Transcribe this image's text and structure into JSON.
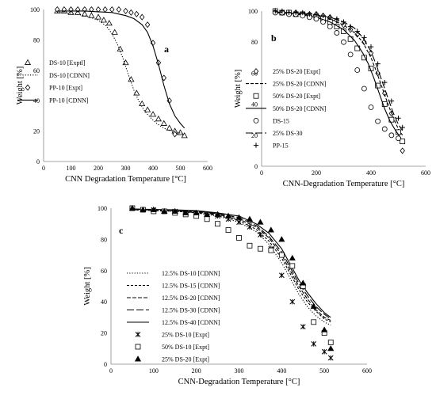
{
  "chart_data": [
    {
      "id": "a",
      "type": "line",
      "panel_label": "a",
      "xlabel": "CNN Degradation Temperature [°C]",
      "ylabel": "Weight [%]",
      "xlim": [
        0,
        600
      ],
      "ylim": [
        0,
        100
      ],
      "xticks": [
        0,
        100,
        200,
        300,
        400,
        500,
        600
      ],
      "yticks": [
        0,
        20,
        40,
        60,
        80,
        100
      ],
      "legend_position": "left",
      "series": [
        {
          "name": "DS-10 [Exptl]",
          "kind": "marker",
          "marker": "triangle",
          "x": [
            50,
            75,
            100,
            125,
            150,
            175,
            200,
            220,
            240,
            260,
            280,
            300,
            320,
            340,
            360,
            380,
            400,
            420,
            440,
            460,
            480,
            500,
            515
          ],
          "y": [
            99,
            99,
            98,
            98,
            97,
            96,
            95,
            93,
            91,
            85,
            74,
            65,
            54,
            45,
            38,
            34,
            31,
            28,
            25,
            22,
            20,
            19,
            17
          ]
        },
        {
          "name": "DS-10 [CDNN]",
          "kind": "line",
          "dash": "1.2,2",
          "x": [
            50,
            100,
            150,
            200,
            230,
            250,
            270,
            290,
            310,
            330,
            350,
            370,
            390,
            410,
            430,
            450,
            470,
            490,
            510
          ],
          "y": [
            98,
            97.5,
            96,
            93,
            89,
            84,
            77,
            68,
            57,
            47,
            39,
            33,
            29,
            25.5,
            23,
            21,
            20,
            19,
            18.5
          ]
        },
        {
          "name": "PP-10 [Expt]",
          "kind": "marker",
          "marker": "diamond",
          "x": [
            50,
            75,
            100,
            125,
            150,
            175,
            200,
            225,
            250,
            275,
            300,
            320,
            340,
            360,
            380,
            400,
            420,
            440,
            460,
            480
          ],
          "y": [
            100,
            100,
            100,
            100,
            100,
            100,
            100,
            100,
            100,
            100,
            99,
            98,
            97,
            95,
            90,
            78,
            65,
            55,
            40,
            18
          ]
        },
        {
          "name": "PP-10 [CDNN]",
          "kind": "line",
          "dash": "",
          "x": [
            50,
            100,
            150,
            200,
            250,
            300,
            330,
            360,
            380,
            400,
            420,
            440,
            460,
            480,
            500,
            515
          ],
          "y": [
            99,
            99,
            99,
            98.5,
            98,
            96,
            94,
            90,
            85,
            76,
            64,
            50,
            38,
            30,
            25,
            22
          ]
        }
      ]
    },
    {
      "id": "b",
      "type": "line",
      "panel_label": "b",
      "xlabel": "CNN-Degradation Temperature [°C]",
      "ylabel": "Weight [%]",
      "xlim": [
        0,
        600
      ],
      "ylim": [
        0,
        100
      ],
      "xticks": [
        0,
        200,
        400,
        600
      ],
      "yticks": [
        0,
        20,
        40,
        60,
        80,
        100
      ],
      "legend_position": "right",
      "series": [
        {
          "name": "25% DS-20 [Expt]",
          "kind": "marker",
          "marker": "diamond",
          "x": [
            50,
            75,
            100,
            125,
            150,
            175,
            200,
            225,
            250,
            275,
            300,
            325,
            350,
            375,
            400,
            425,
            450,
            475,
            500,
            515
          ],
          "y": [
            100,
            99,
            99,
            99,
            98,
            98,
            98,
            97,
            96,
            94,
            91,
            88,
            85,
            80,
            73,
            60,
            47,
            34,
            22,
            10
          ]
        },
        {
          "name": "25% DS-20 [CDNN]",
          "kind": "line",
          "dash": "4,2",
          "x": [
            50,
            100,
            150,
            200,
            250,
            300,
            340,
            370,
            400,
            420,
            440,
            460,
            480,
            500,
            515
          ],
          "y": [
            99,
            98.5,
            98,
            97,
            95,
            91,
            86,
            80,
            70,
            61,
            51,
            41,
            32,
            24,
            20
          ]
        },
        {
          "name": "50% DS-20 [Expt]",
          "kind": "marker",
          "marker": "square",
          "x": [
            50,
            75,
            100,
            125,
            150,
            175,
            200,
            225,
            250,
            275,
            300,
            325,
            350,
            375,
            400,
            425,
            450,
            475,
            500,
            515
          ],
          "y": [
            100,
            99,
            99,
            98,
            98,
            97,
            96,
            95,
            93,
            90,
            87,
            82,
            76,
            70,
            63,
            52,
            40,
            30,
            22,
            16
          ]
        },
        {
          "name": "50% DS-20 [CDNN]",
          "kind": "line",
          "dash": "",
          "x": [
            50,
            100,
            150,
            200,
            250,
            300,
            340,
            370,
            390,
            410,
            430,
            450,
            470,
            490,
            510
          ],
          "y": [
            99,
            98.5,
            97.5,
            96,
            93,
            88,
            81,
            73,
            66,
            57,
            47,
            37,
            29,
            23,
            18
          ]
        },
        {
          "name": "DS-15",
          "kind": "marker",
          "marker": "circle",
          "x": [
            50,
            75,
            100,
            125,
            150,
            175,
            200,
            225,
            250,
            275,
            300,
            325,
            350,
            375,
            400,
            425,
            450,
            475,
            500
          ],
          "y": [
            99,
            99,
            98,
            98,
            97,
            96,
            95,
            93,
            90,
            86,
            80,
            72,
            62,
            50,
            38,
            29,
            24,
            20,
            18
          ]
        },
        {
          "name": "25% DS-30",
          "kind": "line",
          "dash": "9,3",
          "x": [
            50,
            100,
            150,
            200,
            250,
            300,
            340,
            370,
            400,
            420,
            440,
            460,
            480,
            500,
            515
          ],
          "y": [
            99.5,
            99,
            98.5,
            97.5,
            96,
            93,
            89,
            83,
            74,
            65,
            55,
            45,
            35,
            27,
            23
          ]
        },
        {
          "name": "PP-15",
          "kind": "marker",
          "marker": "plus",
          "x": [
            50,
            75,
            100,
            125,
            150,
            175,
            200,
            225,
            250,
            275,
            300,
            325,
            350,
            375,
            400,
            425,
            450,
            475,
            500,
            515
          ],
          "y": [
            100,
            100,
            99,
            99,
            99,
            98,
            98,
            97,
            96,
            95,
            93,
            90,
            87,
            83,
            77,
            66,
            54,
            42,
            31,
            25
          ]
        }
      ]
    },
    {
      "id": "c",
      "type": "line",
      "panel_label": "c",
      "xlabel": "CNN-Degradation Temperature [°C]",
      "ylabel": "Weight [%]",
      "xlim": [
        0,
        600
      ],
      "ylim": [
        0,
        100
      ],
      "xticks": [
        0,
        100,
        200,
        300,
        400,
        500,
        600
      ],
      "yticks": [
        0,
        20,
        40,
        60,
        80,
        100
      ],
      "legend_position": "bottom-left",
      "series": [
        {
          "name": "12.5% DS-10 [CDNN]",
          "kind": "line",
          "dash": "1.2,2",
          "x": [
            50,
            100,
            150,
            200,
            250,
            300,
            340,
            370,
            400,
            420,
            440,
            460,
            480,
            500,
            515
          ],
          "y": [
            99,
            98.5,
            98,
            97,
            95,
            91,
            85,
            77,
            65,
            55,
            45,
            37,
            31,
            27,
            25
          ]
        },
        {
          "name": "12.5% DS-15 [CDNN]",
          "kind": "line",
          "dash": "3,2",
          "x": [
            50,
            100,
            150,
            200,
            250,
            300,
            340,
            370,
            400,
            420,
            440,
            460,
            480,
            500,
            515
          ],
          "y": [
            99,
            98.5,
            98,
            97,
            95.5,
            92,
            86.5,
            79,
            68,
            58,
            48,
            40,
            34,
            29,
            27
          ]
        },
        {
          "name": "12.5% DS-20 [CDNN]",
          "kind": "line",
          "dash": "5,2",
          "x": [
            50,
            100,
            150,
            200,
            250,
            300,
            340,
            370,
            400,
            420,
            440,
            460,
            480,
            500,
            515
          ],
          "y": [
            99.5,
            99,
            98.5,
            97.5,
            96,
            93,
            88,
            81,
            70,
            60,
            50,
            42,
            35,
            30,
            28
          ]
        },
        {
          "name": "12.5% DS-30 [CDNN]",
          "kind": "line",
          "dash": "9,3",
          "x": [
            50,
            100,
            150,
            200,
            250,
            300,
            340,
            370,
            400,
            420,
            440,
            460,
            480,
            500,
            515
          ],
          "y": [
            99.5,
            99,
            98.5,
            98,
            96.5,
            94,
            89,
            82,
            72,
            62,
            52,
            44,
            37,
            32,
            29
          ]
        },
        {
          "name": "12.5% DS-40 [CDNN]",
          "kind": "line",
          "dash": "",
          "x": [
            50,
            100,
            150,
            200,
            250,
            300,
            340,
            370,
            400,
            420,
            440,
            460,
            480,
            500,
            515
          ],
          "y": [
            99.5,
            99.2,
            99,
            98.5,
            97,
            95,
            90,
            84,
            74,
            64,
            54,
            46,
            39,
            33,
            30
          ]
        },
        {
          "name": "25% DS-10 [Expt]",
          "kind": "marker",
          "marker": "xstar",
          "x": [
            50,
            75,
            100,
            125,
            150,
            175,
            200,
            225,
            250,
            275,
            300,
            325,
            350,
            375,
            400,
            425,
            450,
            475,
            500,
            515
          ],
          "y": [
            100,
            99,
            99,
            98,
            98,
            97,
            97,
            96,
            95,
            93,
            91,
            88,
            83,
            74,
            57,
            40,
            24,
            13,
            8,
            4
          ]
        },
        {
          "name": "50% DS-10 [Expt]",
          "kind": "marker",
          "marker": "square",
          "x": [
            50,
            75,
            100,
            125,
            150,
            175,
            200,
            225,
            250,
            275,
            300,
            325,
            350,
            375,
            400,
            425,
            450,
            475,
            500,
            515
          ],
          "y": [
            100,
            99,
            98,
            98,
            97,
            96,
            95,
            93,
            90,
            86,
            81,
            76,
            74,
            73,
            70,
            63,
            50,
            27,
            20,
            14
          ]
        },
        {
          "name": "25% DS-20 [Expt]",
          "kind": "marker",
          "marker": "triangle-filled",
          "x": [
            50,
            75,
            100,
            125,
            150,
            175,
            200,
            225,
            250,
            275,
            300,
            325,
            350,
            375,
            400,
            425,
            450,
            475,
            500,
            515
          ],
          "y": [
            100,
            99,
            99,
            98,
            98,
            97,
            97,
            96,
            96,
            95,
            94,
            93,
            91,
            86,
            80,
            68,
            52,
            37,
            22,
            10
          ]
        }
      ]
    }
  ]
}
